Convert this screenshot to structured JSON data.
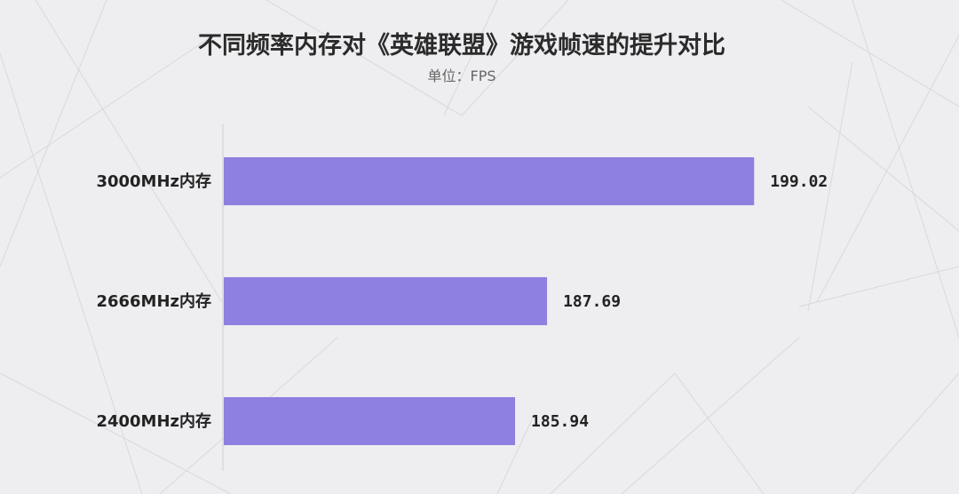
{
  "chart_data": {
    "type": "bar",
    "orientation": "horizontal",
    "title": "不同频率内存对《英雄联盟》游戏帧速的提升对比",
    "subtitle": "单位：FPS",
    "categories": [
      "3000MHz内存",
      "2666MHz内存",
      "2400MHz内存"
    ],
    "values": [
      199.02,
      187.69,
      185.94
    ],
    "value_labels": [
      "199.02",
      "187.69",
      "185.94"
    ],
    "xlim": [
      170,
      201
    ],
    "grid": false,
    "legend": false,
    "bar_color": "#8e80e0"
  }
}
